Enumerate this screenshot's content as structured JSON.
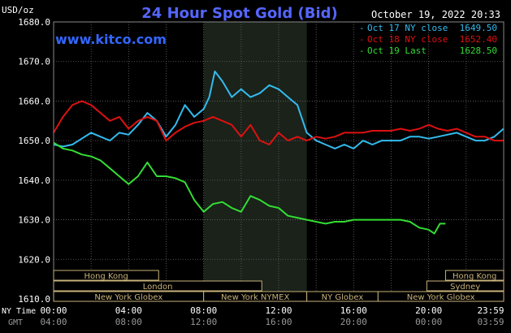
{
  "title": "24 Hour Spot Gold (Bid)",
  "date": "October 19, 2022 20:33",
  "website": "www.kitco.com",
  "y_unit": "USD/oz",
  "colors": {
    "oct17": "#33bbee",
    "oct18": "#dd1111",
    "oct19": "#33dd33",
    "title": "#5566ff",
    "website": "#3366ff"
  },
  "legend": [
    {
      "label": "Oct 17 NY close",
      "value": "1649.50",
      "color": "#33bbee"
    },
    {
      "label": "Oct 18 NY close",
      "value": "1652.40",
      "color": "#dd1111"
    },
    {
      "label": "Oct 19 Last",
      "value": "1628.50",
      "color": "#33dd33"
    }
  ],
  "sessions": {
    "row1": [
      {
        "label": "Hong Kong",
        "start": 0,
        "end": 5.6
      },
      {
        "label": "Hong Kong",
        "start": 20.9,
        "end": 24
      }
    ],
    "row2": [
      {
        "label": "London",
        "start": 0,
        "end": 11.1
      },
      {
        "label": "Sydney",
        "start": 19.9,
        "end": 24
      }
    ],
    "row3": [
      {
        "label": "New York Globex",
        "start": 0,
        "end": 8.0
      },
      {
        "label": "New York NYMEX",
        "start": 8.0,
        "end": 13.5
      },
      {
        "label": "NY Globex",
        "start": 13.5,
        "end": 17.3
      },
      {
        "label": "New York Globex",
        "start": 17.3,
        "end": 24
      }
    ]
  },
  "x_axis": {
    "row_labels": [
      "NY Time",
      "GMT"
    ],
    "ny_ticks": [
      "00:00",
      "04:00",
      "08:00",
      "12:00",
      "16:00",
      "20:00",
      "23:59"
    ],
    "gmt_ticks": [
      "04:00",
      "08:00",
      "12:00",
      "16:00",
      "20:00",
      "00:00",
      "03:59"
    ]
  },
  "chart_data": {
    "type": "line",
    "ylim": [
      1610,
      1680
    ],
    "xlim": [
      0,
      24
    ],
    "y_ticks": [
      "1610.0",
      "1620.0",
      "1630.0",
      "1640.0",
      "1650.0",
      "1660.0",
      "1670.0",
      "1680.0"
    ],
    "highlight_range": [
      8,
      13.5
    ],
    "grid": true,
    "series": [
      {
        "name": "Oct 17 NY close",
        "color": "#33bbee",
        "x": [
          0,
          0.5,
          1,
          1.5,
          2,
          2.5,
          3,
          3.5,
          4,
          4.5,
          5,
          5.5,
          6,
          6.5,
          7,
          7.5,
          8,
          8.3,
          8.6,
          9,
          9.5,
          10,
          10.5,
          11,
          11.5,
          12,
          12.5,
          13,
          13.5,
          14,
          14.5,
          15,
          15.5,
          16,
          16.5,
          17,
          17.5,
          18,
          18.5,
          19,
          19.5,
          20,
          20.5,
          21,
          21.5,
          22,
          22.5,
          23,
          23.5,
          23.99
        ],
        "y": [
          1649,
          1648.5,
          1649,
          1650.5,
          1652,
          1651,
          1650,
          1652,
          1651.5,
          1654,
          1657,
          1655,
          1651,
          1654,
          1659,
          1656,
          1658,
          1661,
          1667.5,
          1665,
          1661,
          1663,
          1661,
          1662,
          1664,
          1663,
          1661,
          1659,
          1652,
          1650,
          1649,
          1648,
          1649,
          1648,
          1650,
          1649,
          1650,
          1650,
          1650,
          1651,
          1651,
          1650.5,
          1651,
          1651.5,
          1652,
          1651,
          1650,
          1650,
          1651,
          1653
        ]
      },
      {
        "name": "Oct 18 NY close",
        "color": "#dd1111",
        "x": [
          0,
          0.5,
          1,
          1.5,
          2,
          2.5,
          3,
          3.5,
          4,
          4.5,
          5,
          5.5,
          6,
          6.5,
          7,
          7.5,
          8,
          8.5,
          9,
          9.5,
          10,
          10.5,
          11,
          11.5,
          12,
          12.5,
          13,
          13.5,
          14,
          14.5,
          15,
          15.5,
          16,
          16.5,
          17,
          17.5,
          18,
          18.5,
          19,
          19.5,
          20,
          20.5,
          21,
          21.5,
          22,
          22.5,
          23,
          23.5,
          23.99
        ],
        "y": [
          1652,
          1656,
          1659,
          1660,
          1659,
          1657,
          1655,
          1656,
          1653,
          1655,
          1656,
          1655,
          1650,
          1652,
          1653.5,
          1654.5,
          1655,
          1656,
          1655,
          1654,
          1651,
          1654,
          1650,
          1649,
          1652,
          1650,
          1651,
          1650,
          1651,
          1650.5,
          1651,
          1652,
          1652,
          1652,
          1652.5,
          1652.5,
          1652.5,
          1653,
          1652.5,
          1653,
          1654,
          1653,
          1652.5,
          1653,
          1652,
          1651,
          1651,
          1650,
          1650
        ]
      },
      {
        "name": "Oct 19 Last",
        "color": "#33dd33",
        "x": [
          0,
          0.5,
          1,
          1.5,
          2,
          2.5,
          3,
          3.5,
          4,
          4.5,
          5,
          5.5,
          6,
          6.5,
          7,
          7.5,
          8,
          8.5,
          9,
          9.5,
          10,
          10.5,
          11,
          11.5,
          12,
          12.5,
          13,
          13.5,
          14,
          14.5,
          15,
          15.5,
          16,
          16.5,
          17,
          17.5,
          18,
          18.5,
          19,
          19.5,
          20,
          20.3,
          20.6,
          20.9
        ],
        "y": [
          1649.5,
          1648,
          1647.5,
          1646.5,
          1646,
          1645,
          1643,
          1641,
          1639,
          1641,
          1644.5,
          1641,
          1641,
          1640.5,
          1639.5,
          1635,
          1632,
          1634,
          1634.5,
          1633,
          1632,
          1636,
          1635,
          1633.5,
          1633,
          1631,
          1630.5,
          1630,
          1629.5,
          1629,
          1629.5,
          1629.5,
          1630,
          1630,
          1630,
          1630,
          1630,
          1630,
          1629.5,
          1628,
          1627.5,
          1626.5,
          1629,
          1629
        ]
      }
    ]
  }
}
